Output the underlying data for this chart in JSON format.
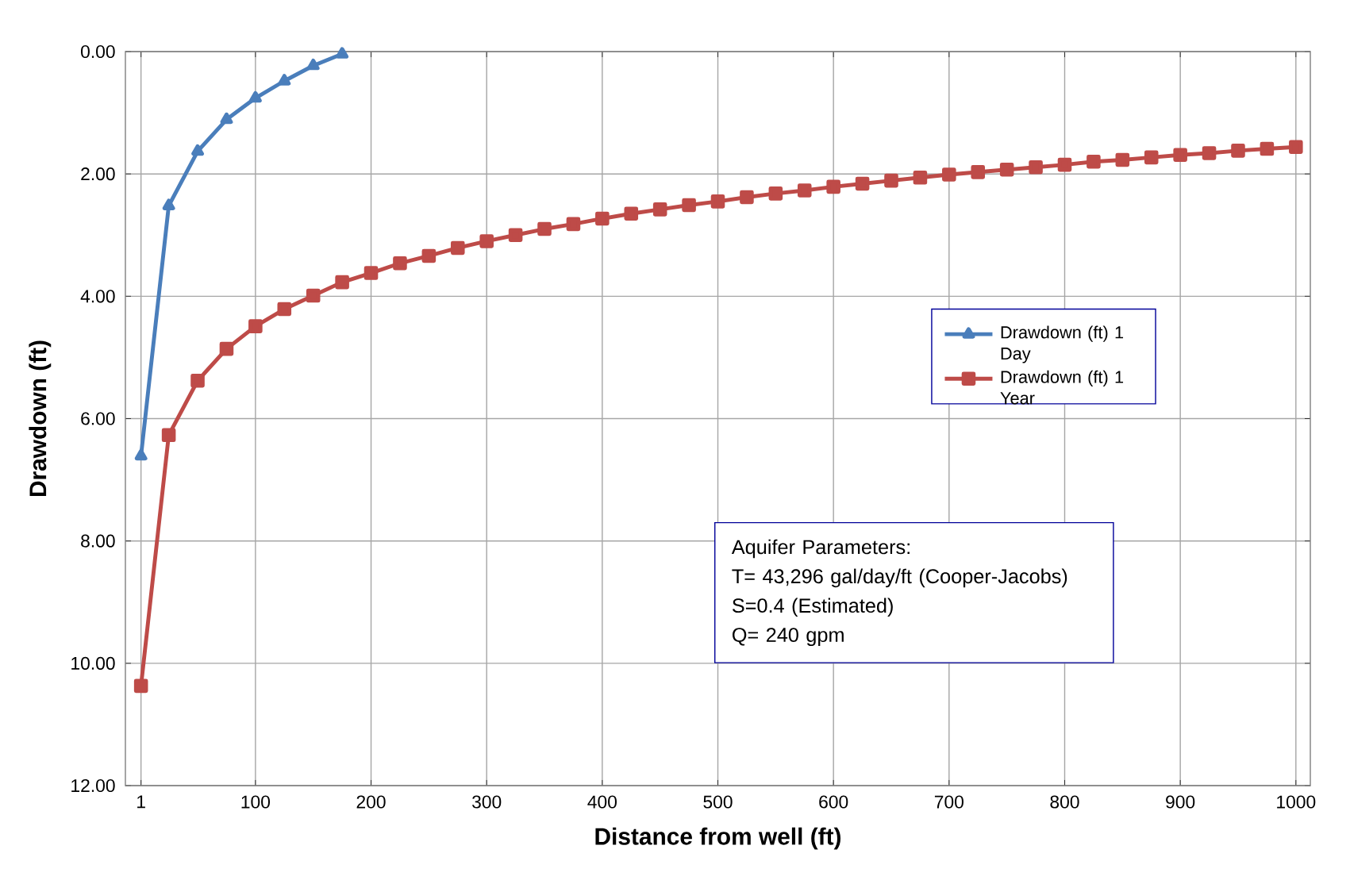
{
  "chart_data": {
    "type": "line",
    "xlabel": "Distance from well (ft)",
    "ylabel": "Drawdown (ft)",
    "xlim": [
      -12.5,
      1012.5
    ],
    "xticks": [
      1,
      100,
      200,
      300,
      400,
      500,
      600,
      700,
      800,
      900,
      1000
    ],
    "ylim": [
      12,
      0
    ],
    "yticks": [
      {
        "value": 0,
        "label": "0.00"
      },
      {
        "value": 2,
        "label": "2.00"
      },
      {
        "value": 4,
        "label": "4.00"
      },
      {
        "value": 6,
        "label": "6.00"
      },
      {
        "value": 8,
        "label": "8.00"
      },
      {
        "value": 10,
        "label": "10.00"
      },
      {
        "value": 12,
        "label": "12.00"
      }
    ],
    "grid": true,
    "legend": "right",
    "line_style": "solid",
    "series": [
      {
        "name": "Drawdown (ft) 1 Day",
        "color": "#4a7ebb",
        "marker": "triangle",
        "x": [
          1,
          25,
          50,
          75,
          100,
          125,
          150,
          175
        ],
        "values": [
          6.61,
          2.52,
          1.63,
          1.11,
          0.76,
          0.48,
          0.23,
          0.04
        ]
      },
      {
        "name": "Drawdown (ft) 1 Year",
        "color": "#be4b48",
        "marker": "square",
        "x": [
          1,
          25,
          50,
          75,
          100,
          125,
          150,
          175,
          200,
          225,
          250,
          275,
          300,
          325,
          350,
          375,
          400,
          425,
          450,
          475,
          500,
          525,
          550,
          575,
          600,
          625,
          650,
          675,
          700,
          725,
          750,
          775,
          800,
          825,
          850,
          875,
          900,
          925,
          950,
          975,
          1000
        ],
        "values": [
          10.37,
          6.27,
          5.38,
          4.86,
          4.49,
          4.21,
          3.99,
          3.77,
          3.62,
          3.46,
          3.34,
          3.21,
          3.1,
          3.0,
          2.9,
          2.82,
          2.73,
          2.65,
          2.58,
          2.51,
          2.45,
          2.38,
          2.32,
          2.27,
          2.21,
          2.16,
          2.11,
          2.06,
          2.01,
          1.97,
          1.93,
          1.89,
          1.85,
          1.8,
          1.77,
          1.73,
          1.69,
          1.66,
          1.62,
          1.59,
          1.56
        ]
      }
    ],
    "annotations": [
      "Aquifer Parameters:",
      "T= 43,296 gal/day/ft  (Cooper-Jacobs)",
      "S=0.4 (Estimated)",
      "Q= 240 gpm"
    ]
  }
}
